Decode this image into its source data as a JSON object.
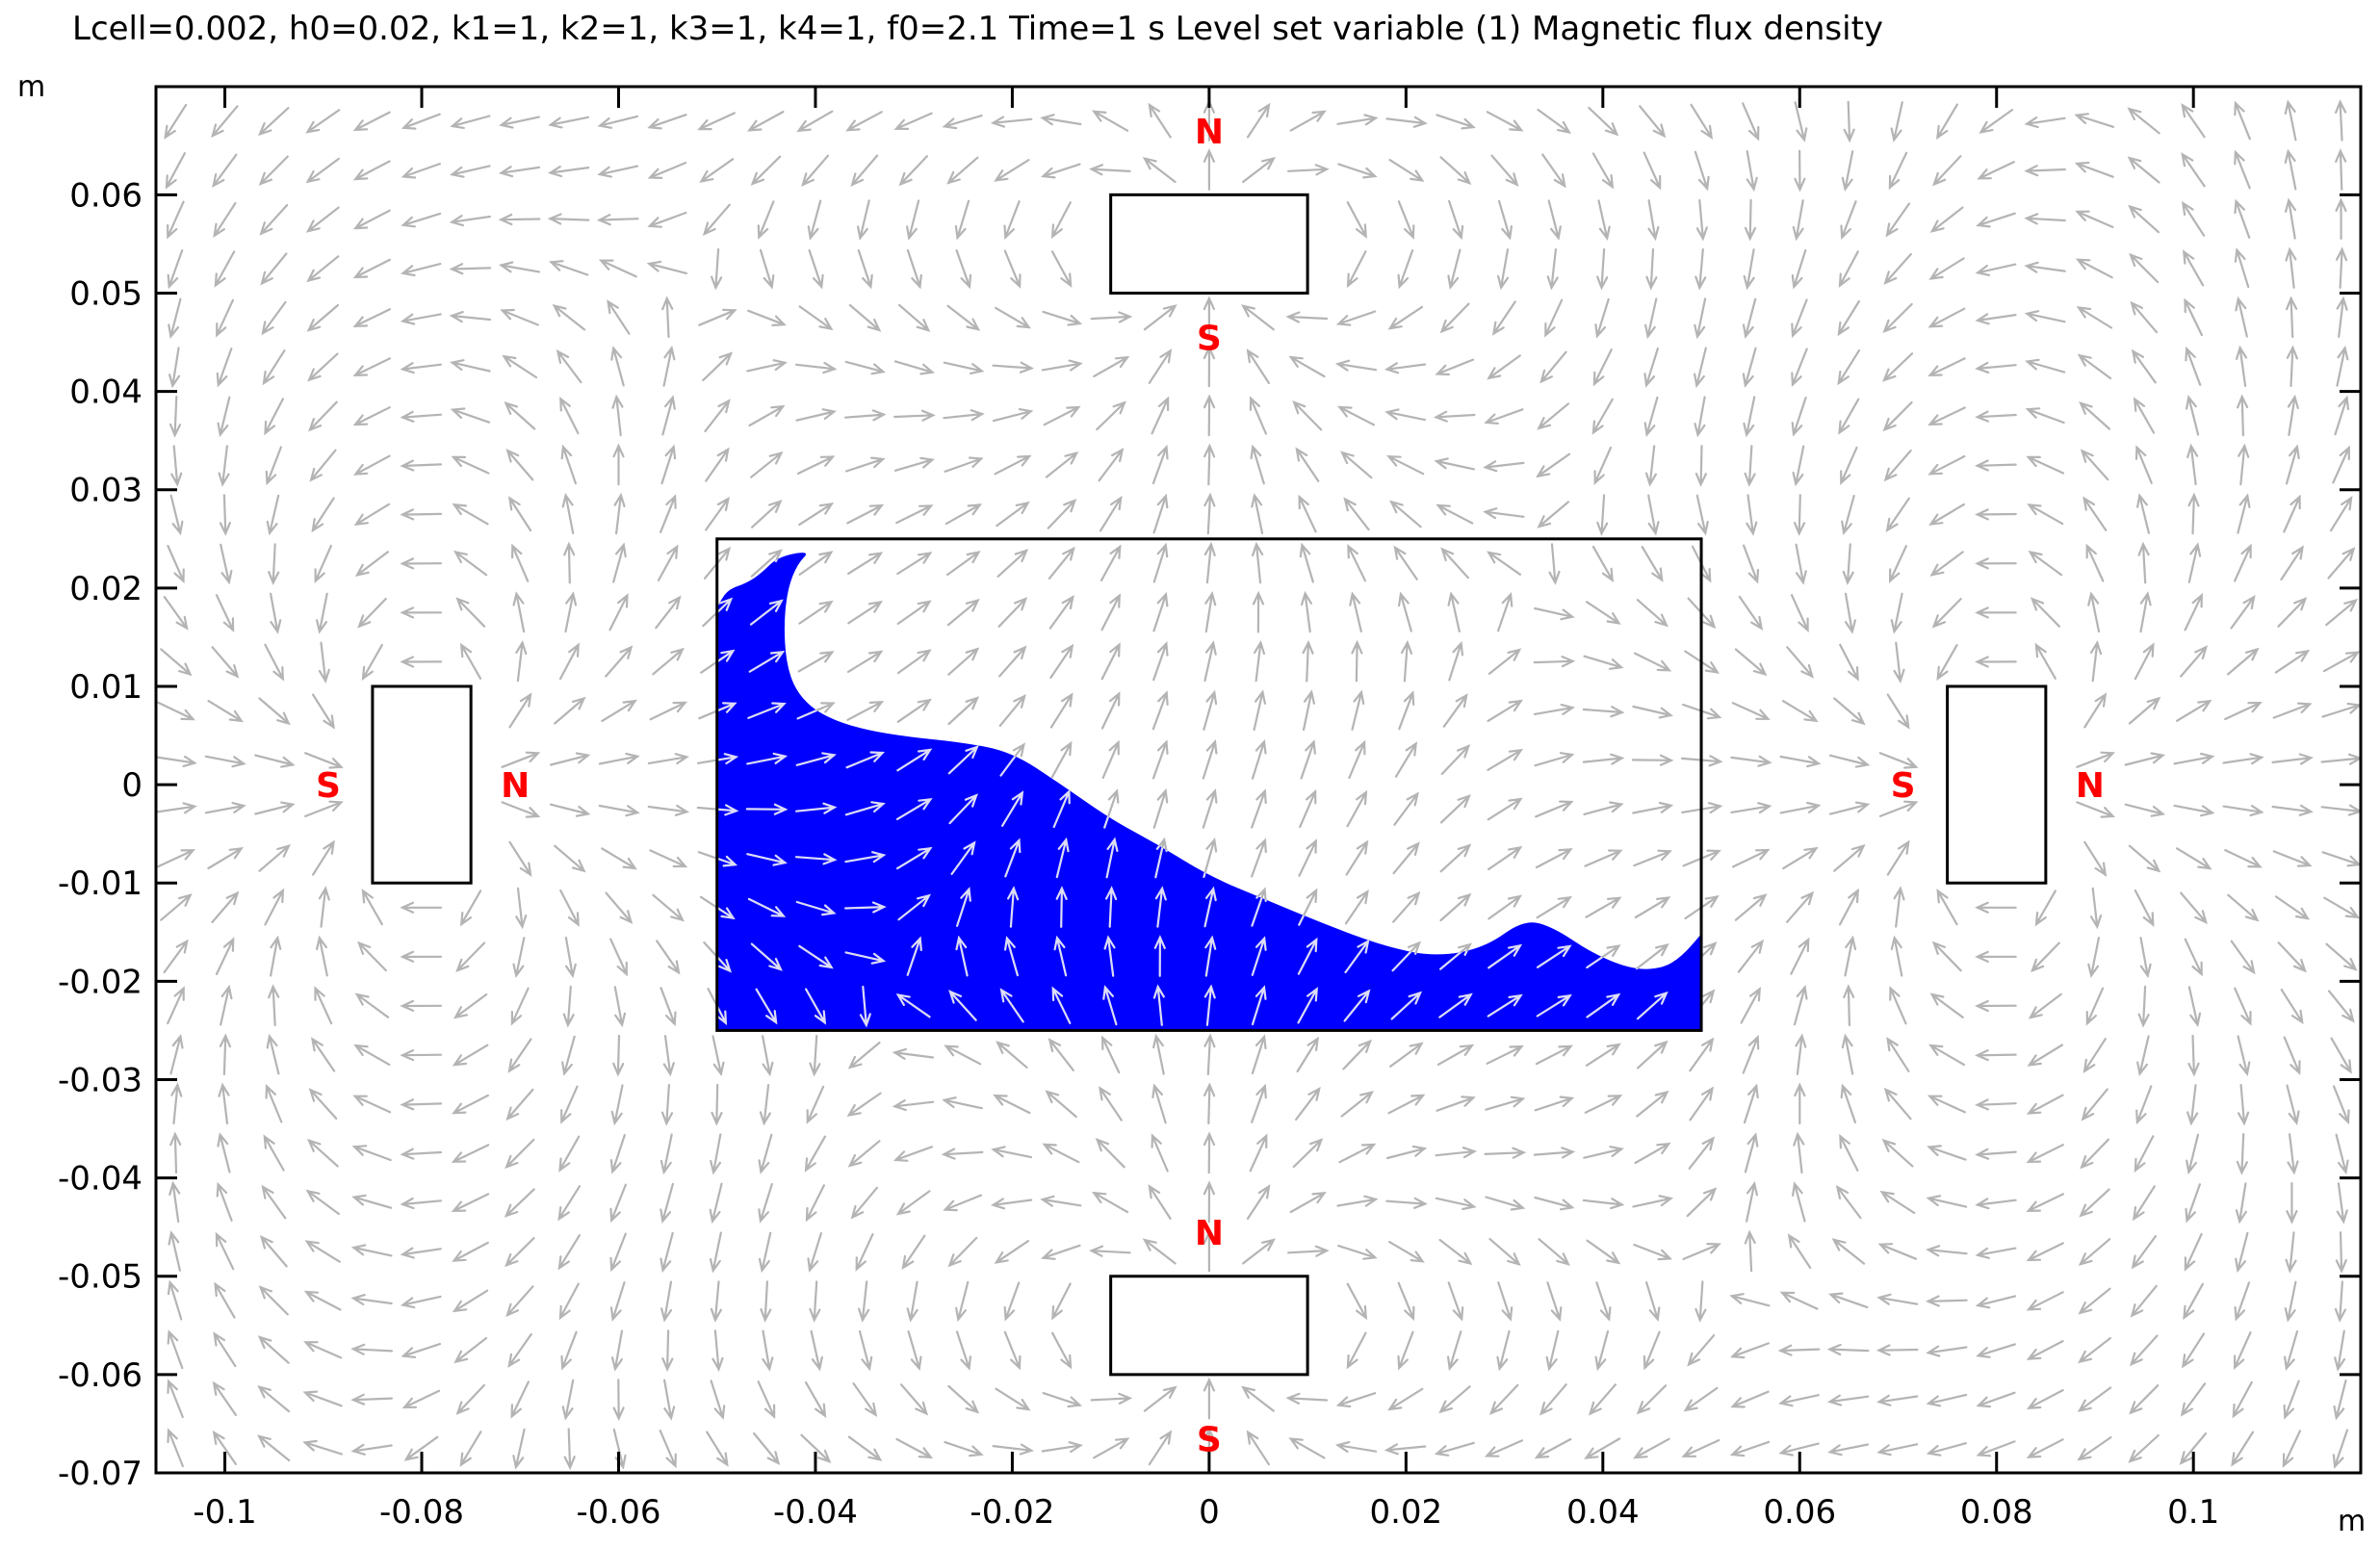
{
  "chart_data": {
    "type": "vector-field-surface",
    "title": "Lcell=0.002, h0=0.02, k1=1, k2=1, k3=1, k4=1, f0=2.1 Time=1 s  Level set variable (1)  Magnetic flux density",
    "x_unit": "m",
    "y_unit": "m",
    "xlim": [
      -0.107,
      0.117
    ],
    "ylim": [
      -0.07,
      0.071
    ],
    "x_ticks": [
      -0.1,
      -0.08,
      -0.06,
      -0.04,
      -0.02,
      0,
      0.02,
      0.04,
      0.06,
      0.08,
      0.1
    ],
    "x_tick_labels": [
      "-0.1",
      "-0.08",
      "-0.06",
      "-0.04",
      "-0.02",
      "0",
      "0.02",
      "0.04",
      "0.06",
      "0.08",
      "0.1"
    ],
    "y_ticks": [
      0.06,
      0.05,
      0.04,
      0.03,
      0.02,
      0.01,
      0,
      -0.01,
      -0.02,
      -0.03,
      -0.04,
      -0.05,
      -0.06,
      -0.07
    ],
    "y_tick_labels": [
      "0.06",
      "0.05",
      "0.04",
      "0.03",
      "0.02",
      "0.01",
      "0",
      "-0.01",
      "-0.02",
      "-0.03",
      "-0.04",
      "-0.05",
      "-0.06",
      "-0.07"
    ],
    "container": {
      "x": [
        -0.05,
        0.05
      ],
      "y": [
        -0.025,
        0.025
      ]
    },
    "magnets": [
      {
        "id": "top",
        "x": [
          -0.01,
          0.01
        ],
        "y": [
          0.05,
          0.06
        ],
        "north": "N",
        "south": "S",
        "north_at": [
          0,
          0.0665
        ],
        "south_at": [
          0,
          0.0455
        ]
      },
      {
        "id": "bottom",
        "x": [
          -0.01,
          0.01
        ],
        "y": [
          -0.06,
          -0.05
        ],
        "north": "N",
        "south": "S",
        "north_at": [
          0,
          -0.0455
        ],
        "south_at": [
          0,
          -0.0665
        ]
      },
      {
        "id": "left",
        "x": [
          -0.085,
          -0.075
        ],
        "y": [
          -0.01,
          0.01
        ],
        "north": "N",
        "south": "S",
        "north_at": [
          -0.0705,
          0
        ],
        "south_at": [
          -0.0895,
          0
        ]
      },
      {
        "id": "right",
        "x": [
          0.075,
          0.085
        ],
        "y": [
          -0.01,
          0.01
        ],
        "north": "N",
        "south": "S",
        "north_at": [
          0.0895,
          0
        ],
        "south_at": [
          0.0705,
          0
        ]
      }
    ],
    "fluid_surface": {
      "color": "#0000ff",
      "boundary_points": [
        [
          -0.05,
          -0.025
        ],
        [
          -0.05,
          0.018
        ],
        [
          -0.049,
          0.0198
        ],
        [
          -0.047,
          0.0205
        ],
        [
          -0.0455,
          0.0215
        ],
        [
          -0.0438,
          0.0232
        ],
        [
          -0.0405,
          0.0238
        ],
        [
          -0.0418,
          0.0225
        ],
        [
          -0.0428,
          0.02
        ],
        [
          -0.0432,
          0.0165
        ],
        [
          -0.043,
          0.0125
        ],
        [
          -0.042,
          0.0095
        ],
        [
          -0.0398,
          0.0073
        ],
        [
          -0.036,
          0.0058
        ],
        [
          -0.031,
          0.0049
        ],
        [
          -0.025,
          0.0043
        ],
        [
          -0.02,
          0.0033
        ],
        [
          -0.015,
          0.0
        ],
        [
          -0.01,
          -0.0035
        ],
        [
          -0.005,
          -0.0062
        ],
        [
          0.0,
          -0.0093
        ],
        [
          0.006,
          -0.0118
        ],
        [
          0.012,
          -0.0143
        ],
        [
          0.018,
          -0.0165
        ],
        [
          0.023,
          -0.0175
        ],
        [
          0.028,
          -0.0166
        ],
        [
          0.032,
          -0.0137
        ],
        [
          0.035,
          -0.0145
        ],
        [
          0.039,
          -0.0172
        ],
        [
          0.043,
          -0.0188
        ],
        [
          0.046,
          -0.0187
        ],
        [
          0.048,
          -0.0175
        ],
        [
          0.05,
          -0.0152
        ],
        [
          0.05,
          -0.025
        ]
      ]
    },
    "field_colors": {
      "background_arrows": "#b4b4b4",
      "fluid_arrows": "#dcdcf5"
    },
    "field_model": {
      "type": "dipole-sum",
      "dipoles": [
        {
          "position": [
            0,
            0.055
          ],
          "moment_direction": [
            0,
            1
          ]
        },
        {
          "position": [
            0,
            -0.055
          ],
          "moment_direction": [
            0,
            1
          ]
        },
        {
          "position": [
            -0.08,
            0
          ],
          "moment_direction": [
            1,
            0
          ]
        },
        {
          "position": [
            0.08,
            0
          ],
          "moment_direction": [
            1,
            0
          ]
        }
      ],
      "arrow_grid_spacing": 0.005
    }
  }
}
